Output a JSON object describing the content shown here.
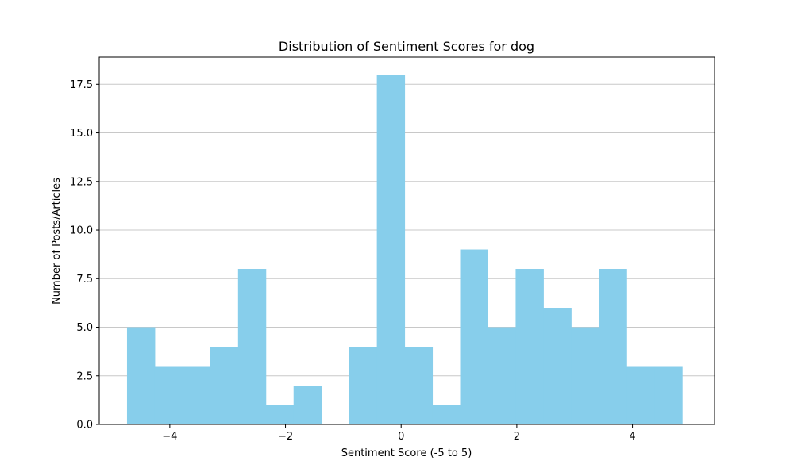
{
  "chart_data": {
    "type": "bar",
    "title": "Distribution of Sentiment Scores for dog",
    "xlabel": "Sentiment Score (-5 to 5)",
    "ylabel": "Number of Posts/Articles",
    "xlim": [
      -5.22,
      5.42
    ],
    "ylim": [
      0,
      18.9
    ],
    "bar_color": "#87ceeb",
    "grid": "y",
    "x_ticks": [
      -4,
      -2,
      0,
      2,
      4
    ],
    "x_tick_labels": [
      "−4",
      "−2",
      "0",
      "2",
      "4"
    ],
    "y_ticks": [
      0,
      2.5,
      5,
      7.5,
      10,
      12.5,
      15,
      17.5
    ],
    "y_tick_labels": [
      "0.0",
      "2.5",
      "5.0",
      "7.5",
      "10.0",
      "12.5",
      "15.0",
      "17.5"
    ],
    "bin_edges": [
      -4.74,
      -4.26,
      -3.78,
      -3.3,
      -2.82,
      -2.34,
      -1.86,
      -1.38,
      -0.9,
      -0.42,
      0.06,
      0.54,
      1.02,
      1.5,
      1.98,
      2.46,
      2.94,
      3.42,
      3.9,
      4.38,
      4.86
    ],
    "counts": [
      5,
      3,
      3,
      4,
      8,
      1,
      2,
      0,
      4,
      18,
      4,
      1,
      9,
      5,
      8,
      6,
      5,
      8,
      3,
      3
    ]
  }
}
